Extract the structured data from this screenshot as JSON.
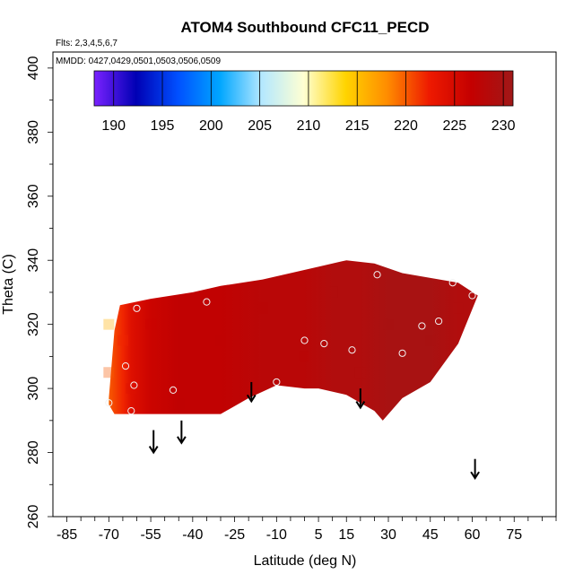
{
  "chart_data": {
    "type": "heatmap",
    "title": "ATOM4 Southbound CFC11_PECD",
    "flights_note": "Flts: 2,3,4,5,6,7",
    "dates_note": "MMDD: 0427,0429,0501,0503,0506,0509",
    "xlabel": "Latitude (deg N)",
    "ylabel": "Theta (C)",
    "xlim": [
      -90,
      90
    ],
    "ylim": [
      260,
      405
    ],
    "x_ticks": [
      -85,
      -70,
      -55,
      -40,
      -25,
      -10,
      5,
      15,
      30,
      45,
      60,
      75
    ],
    "y_ticks": [
      260,
      280,
      300,
      320,
      340,
      360,
      380,
      400
    ],
    "colorbar": {
      "min": 188,
      "max": 231,
      "tick_values": [
        190,
        195,
        200,
        205,
        210,
        215,
        220,
        225,
        230
      ],
      "colors": [
        "#7a22ff",
        "#0000b4",
        "#0050ff",
        "#00a6ff",
        "#b4e8ff",
        "#ffffd2",
        "#ffd400",
        "#ff8c00",
        "#ee1a00",
        "#c40000",
        "#a01818"
      ]
    },
    "field_region": {
      "lower_boundary": [
        [
          -70,
          295
        ],
        [
          -68,
          292
        ],
        [
          -30,
          292
        ],
        [
          -20,
          297
        ],
        [
          -10,
          301
        ],
        [
          0,
          300
        ],
        [
          5,
          300
        ],
        [
          15,
          298
        ],
        [
          25,
          293
        ],
        [
          28,
          290
        ],
        [
          35,
          297
        ],
        [
          45,
          302
        ],
        [
          55,
          314
        ],
        [
          62,
          329
        ]
      ],
      "upper_boundary": [
        [
          -70,
          297
        ],
        [
          -68,
          318
        ],
        [
          -66,
          326
        ],
        [
          -55,
          328
        ],
        [
          -40,
          330
        ],
        [
          -30,
          332
        ],
        [
          -15,
          334
        ],
        [
          -5,
          336
        ],
        [
          5,
          338
        ],
        [
          15,
          340
        ],
        [
          25,
          339
        ],
        [
          35,
          336
        ],
        [
          55,
          333
        ],
        [
          62,
          329
        ]
      ]
    },
    "field_values": [
      {
        "lat": -70,
        "theta": 320,
        "value": 216
      },
      {
        "lat": -70,
        "theta": 305,
        "value": 220
      },
      {
        "lat": -65,
        "theta": 315,
        "value": 222
      },
      {
        "lat": -62,
        "theta": 300,
        "value": 224
      },
      {
        "lat": -55,
        "theta": 320,
        "value": 226
      },
      {
        "lat": -45,
        "theta": 295,
        "value": 227
      },
      {
        "lat": -30,
        "theta": 315,
        "value": 227
      },
      {
        "lat": -15,
        "theta": 325,
        "value": 228
      },
      {
        "lat": 0,
        "theta": 310,
        "value": 228
      },
      {
        "lat": 10,
        "theta": 330,
        "value": 229
      },
      {
        "lat": 20,
        "theta": 305,
        "value": 229
      },
      {
        "lat": 30,
        "theta": 320,
        "value": 230
      },
      {
        "lat": 45,
        "theta": 315,
        "value": 230
      },
      {
        "lat": 55,
        "theta": 325,
        "value": 229
      }
    ],
    "sample_points": [
      {
        "lat": -70,
        "theta": 295.5
      },
      {
        "lat": -62,
        "theta": 293
      },
      {
        "lat": -61,
        "theta": 301
      },
      {
        "lat": -64,
        "theta": 307
      },
      {
        "lat": -60,
        "theta": 325
      },
      {
        "lat": -47,
        "theta": 299.5
      },
      {
        "lat": -35,
        "theta": 327
      },
      {
        "lat": -10,
        "theta": 302
      },
      {
        "lat": 0,
        "theta": 315
      },
      {
        "lat": 7,
        "theta": 314
      },
      {
        "lat": 17,
        "theta": 312
      },
      {
        "lat": 26,
        "theta": 335.5
      },
      {
        "lat": 35,
        "theta": 311
      },
      {
        "lat": 42,
        "theta": 319.5
      },
      {
        "lat": 48,
        "theta": 321
      },
      {
        "lat": 53,
        "theta": 333
      },
      {
        "lat": 60,
        "theta": 329
      }
    ],
    "arrows": [
      {
        "lat": -54,
        "theta_top": 287,
        "theta_bottom": 280
      },
      {
        "lat": -44,
        "theta_top": 290,
        "theta_bottom": 283
      },
      {
        "lat": -19,
        "theta_top": 302,
        "theta_bottom": 296
      },
      {
        "lat": 20,
        "theta_top": 300,
        "theta_bottom": 294
      },
      {
        "lat": 61,
        "theta_top": 278,
        "theta_bottom": 272
      }
    ]
  }
}
